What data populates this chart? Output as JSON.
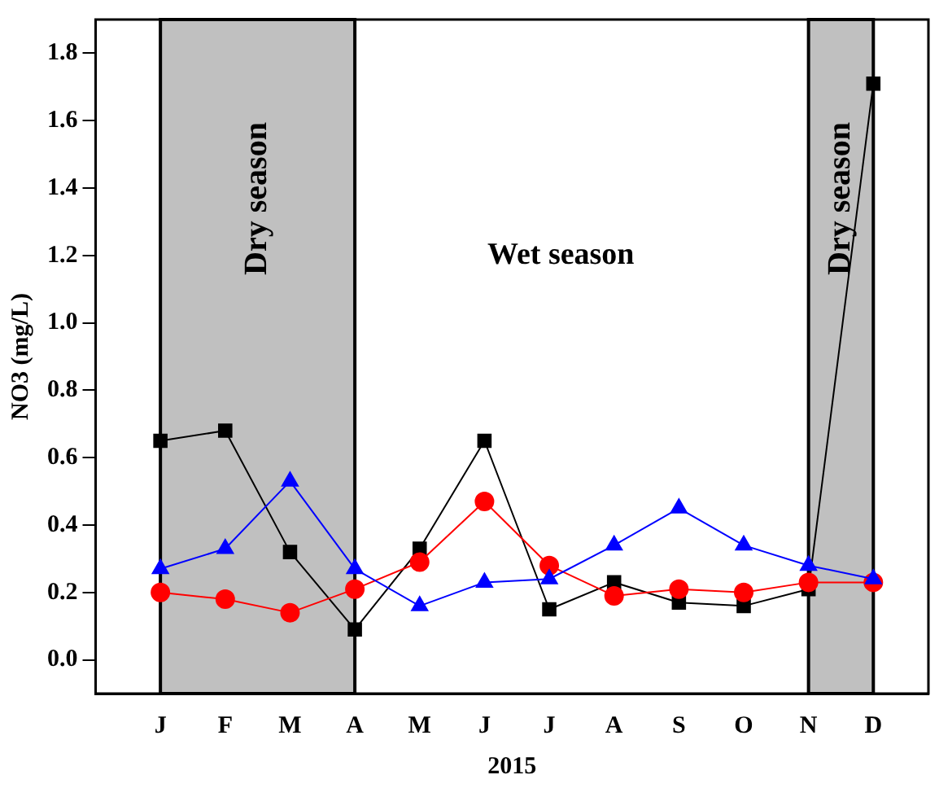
{
  "chart_data": {
    "type": "line",
    "xlabel": "2015",
    "ylabel": "NO3 (mg/L)",
    "categories": [
      "J",
      "F",
      "M",
      "A",
      "M",
      "J",
      "J",
      "A",
      "S",
      "O",
      "N",
      "D"
    ],
    "series": [
      {
        "color": "#000000",
        "marker": "square",
        "values": [
          0.65,
          0.68,
          0.32,
          0.09,
          0.33,
          0.65,
          0.15,
          0.23,
          0.17,
          0.16,
          0.21,
          1.71
        ]
      },
      {
        "color": "#ff0000",
        "marker": "circle",
        "values": [
          0.2,
          0.18,
          0.14,
          0.21,
          0.29,
          0.47,
          0.28,
          0.19,
          0.21,
          0.2,
          0.23,
          0.23
        ]
      },
      {
        "color": "#0000ff",
        "marker": "triangle",
        "values": [
          0.27,
          0.33,
          0.53,
          0.27,
          0.16,
          0.23,
          0.24,
          0.34,
          0.45,
          0.34,
          0.28,
          0.24
        ]
      }
    ],
    "bands": [
      {
        "axis": "x",
        "from": "J",
        "to": "A",
        "label": "Dry season",
        "color": "#c0c0c0"
      },
      {
        "axis": "x",
        "from": "N",
        "to": "D",
        "label": "Dry season",
        "color": "#c0c0c0"
      }
    ],
    "annotations": [
      "Wet season"
    ],
    "ylim": [
      -0.1,
      1.9
    ],
    "yticks": [
      {
        "value": 0,
        "label": "0.0"
      },
      0.2,
      0.4,
      0.6,
      0.8,
      {
        "value": 1,
        "label": "1.0"
      },
      1.2,
      1.4,
      1.6,
      1.8
    ],
    "grid": false,
    "legend": false
  }
}
